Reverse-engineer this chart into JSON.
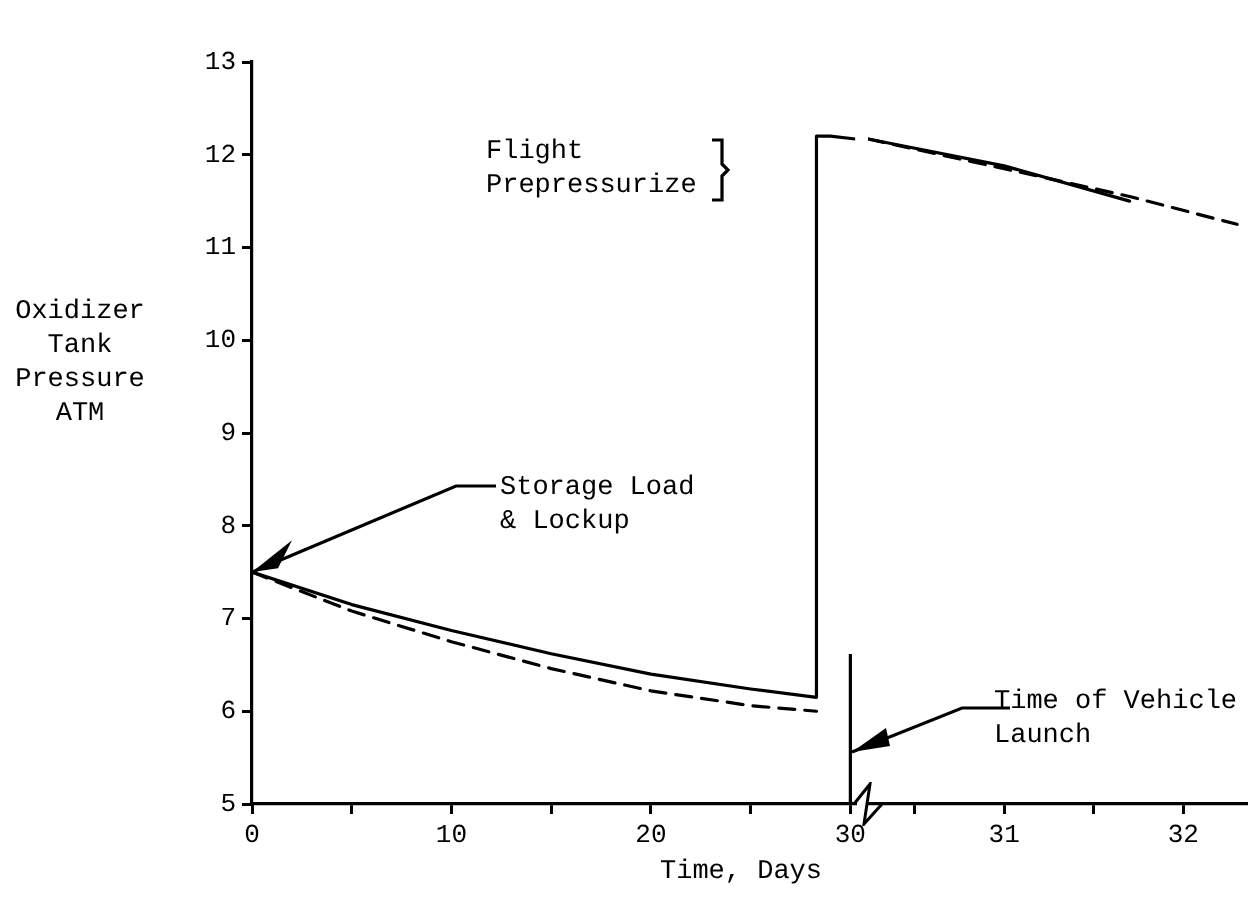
{
  "chart_data": [
    {
      "type": "line",
      "xlabel": "Time, Days",
      "ylabel": "Oxidizer Tank Pressure ATM",
      "xlim": [
        0,
        30.24
      ],
      "ylim": [
        5,
        13
      ],
      "xticks": [
        0,
        {
          "value": 5,
          "label": null
        },
        10,
        {
          "value": 15,
          "label": null
        },
        20,
        {
          "value": 25,
          "label": null
        },
        30
      ],
      "yticks": [
        5,
        6,
        7,
        8,
        9,
        10,
        11,
        12,
        13
      ],
      "grid": false,
      "legend": false,
      "marker": "none",
      "series": [
        {
          "color": "#000000",
          "line_style": "solid",
          "x": [
            0,
            5,
            10,
            15,
            20,
            25,
            28.3,
            28.3,
            29,
            30.24
          ],
          "values": [
            7.5,
            7.15,
            6.87,
            6.62,
            6.4,
            6.24,
            6.15,
            12.2,
            12.2,
            12.17
          ]
        },
        {
          "color": "#000000",
          "line_style": "dashed",
          "x": [
            0,
            5,
            10,
            15,
            20,
            25,
            28.3
          ],
          "values": [
            7.5,
            7.08,
            6.75,
            6.46,
            6.22,
            6.06,
            6.0
          ]
        }
      ],
      "ref_lines": [
        {
          "axis": "x",
          "value": 30,
          "label": "Time of Vehicle Launch",
          "color": "#000000"
        }
      ],
      "annotations": [
        "Flight Prepressurize",
        {
          "text": "Storage Load & Lockup",
          "x": 0,
          "y": 7.5
        }
      ]
    },
    {
      "type": "line",
      "xlim": [
        30.24,
        32.35
      ],
      "ylim": [
        5,
        13
      ],
      "xticks": [
        {
          "value": 30.5,
          "label": null
        },
        31,
        {
          "value": 31.5,
          "label": null
        },
        32
      ],
      "tick_labels": "x",
      "grid": false,
      "legend": false,
      "marker": "none",
      "series": [
        {
          "color": "#000000",
          "line_style": "solid",
          "x": [
            30.24,
            31,
            31.7
          ],
          "values": [
            12.17,
            11.88,
            11.5
          ]
        },
        {
          "color": "#000000",
          "line_style": "dashed",
          "x": [
            30.24,
            31,
            31.7,
            32.3
          ],
          "values": [
            12.17,
            11.85,
            11.55,
            11.25
          ]
        }
      ]
    }
  ]
}
